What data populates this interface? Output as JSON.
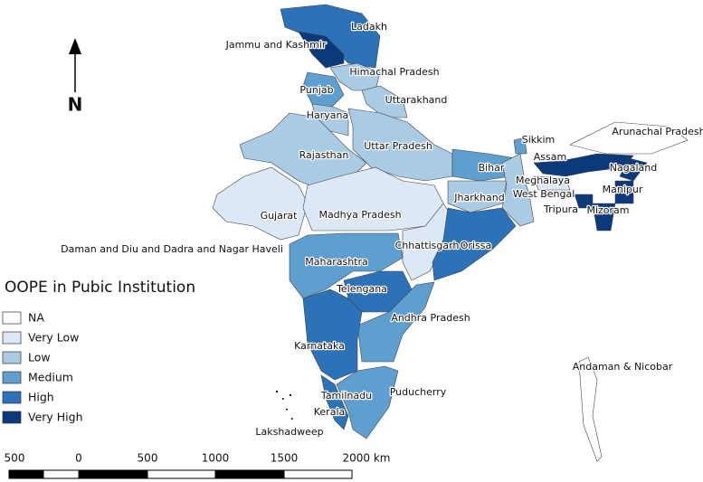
{
  "map": {
    "north_arrow": "N",
    "legend": {
      "title": "OOPE in Pubic Institution",
      "items": [
        {
          "label": "NA",
          "color": "#ffffff"
        },
        {
          "label": "Very Low",
          "color": "#dce8f5"
        },
        {
          "label": "Low",
          "color": "#a9cbe4"
        },
        {
          "label": "Medium",
          "color": "#5e9fd0"
        },
        {
          "label": "High",
          "color": "#2c72b8"
        },
        {
          "label": "Very High",
          "color": "#0b3a7a"
        }
      ]
    },
    "regions": [
      {
        "name": "Ladakh",
        "color": "#2c72b8"
      },
      {
        "name": "Jammu and Kashmir",
        "color": "#0b3a7a"
      },
      {
        "name": "Himachal Pradesh",
        "color": "#a9cbe4"
      },
      {
        "name": "Punjab",
        "color": "#5e9fd0"
      },
      {
        "name": "Uttarakhand",
        "color": "#a9cbe4"
      },
      {
        "name": "Haryana",
        "color": "#a9cbe4"
      },
      {
        "name": "Rajasthan",
        "color": "#a9cbe4"
      },
      {
        "name": "Uttar Pradesh",
        "color": "#a9cbe4"
      },
      {
        "name": "Gujarat",
        "color": "#dce8f5"
      },
      {
        "name": "Madhya Pradesh",
        "color": "#dce8f5"
      },
      {
        "name": "Bihar",
        "color": "#5e9fd0"
      },
      {
        "name": "Jharkhand",
        "color": "#a9cbe4"
      },
      {
        "name": "West Bengal",
        "color": "#a9cbe4"
      },
      {
        "name": "Sikkim",
        "color": "#5e9fd0"
      },
      {
        "name": "Arunachal Pradesh",
        "color": "#ffffff"
      },
      {
        "name": "Assam",
        "color": "#0b3a7a"
      },
      {
        "name": "Meghalaya",
        "color": "#dce8f5"
      },
      {
        "name": "Nagaland",
        "color": "#0b3a7a"
      },
      {
        "name": "Manipur",
        "color": "#0b3a7a"
      },
      {
        "name": "Mizoram",
        "color": "#0b3a7a"
      },
      {
        "name": "Tripura",
        "color": "#0b3a7a"
      },
      {
        "name": "Chhattisgarh",
        "color": "#dce8f5"
      },
      {
        "name": "Orissa",
        "color": "#2c72b8"
      },
      {
        "name": "Maharashtra",
        "color": "#5e9fd0"
      },
      {
        "name": "Telengana",
        "color": "#2c72b8"
      },
      {
        "name": "Andhra Pradesh",
        "color": "#5e9fd0"
      },
      {
        "name": "Karnataka",
        "color": "#2c72b8"
      },
      {
        "name": "Kerala",
        "color": "#2c72b8"
      },
      {
        "name": "Tamilnadu",
        "color": "#5e9fd0"
      },
      {
        "name": "Andaman & Nicobar",
        "color": "#ffffff"
      }
    ],
    "place_labels": [
      "Daman and Diu and Dadra and Nagar Haveli",
      "Puducherry",
      "Lakshadweep"
    ],
    "scale_bar": {
      "labels": [
        "500",
        "0",
        "500",
        "1000",
        "1500",
        "2000 km"
      ]
    }
  }
}
